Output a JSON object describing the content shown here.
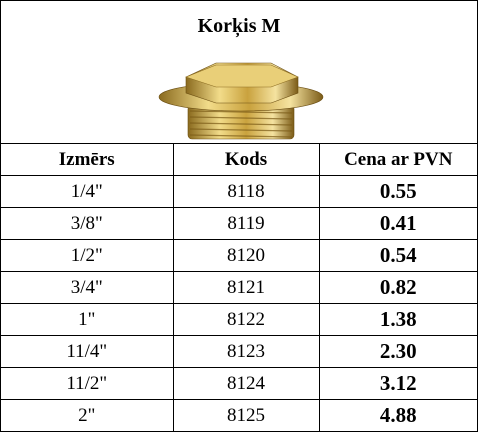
{
  "header": {
    "title": "Korķis M"
  },
  "table": {
    "columns": [
      "Izmērs",
      "Kods",
      "Cena ar PVN"
    ],
    "rows": [
      [
        "1/4\"",
        "8118",
        "0.55"
      ],
      [
        "3/8\"",
        "8119",
        "0.41"
      ],
      [
        "1/2\"",
        "8120",
        "0.54"
      ],
      [
        "3/4\"",
        "8121",
        "0.82"
      ],
      [
        "1\"",
        "8122",
        "1.38"
      ],
      [
        "11/4\"",
        "8123",
        "2.30"
      ],
      [
        "11/2\"",
        "8124",
        "3.12"
      ],
      [
        "2\"",
        "8125",
        "4.88"
      ]
    ]
  }
}
